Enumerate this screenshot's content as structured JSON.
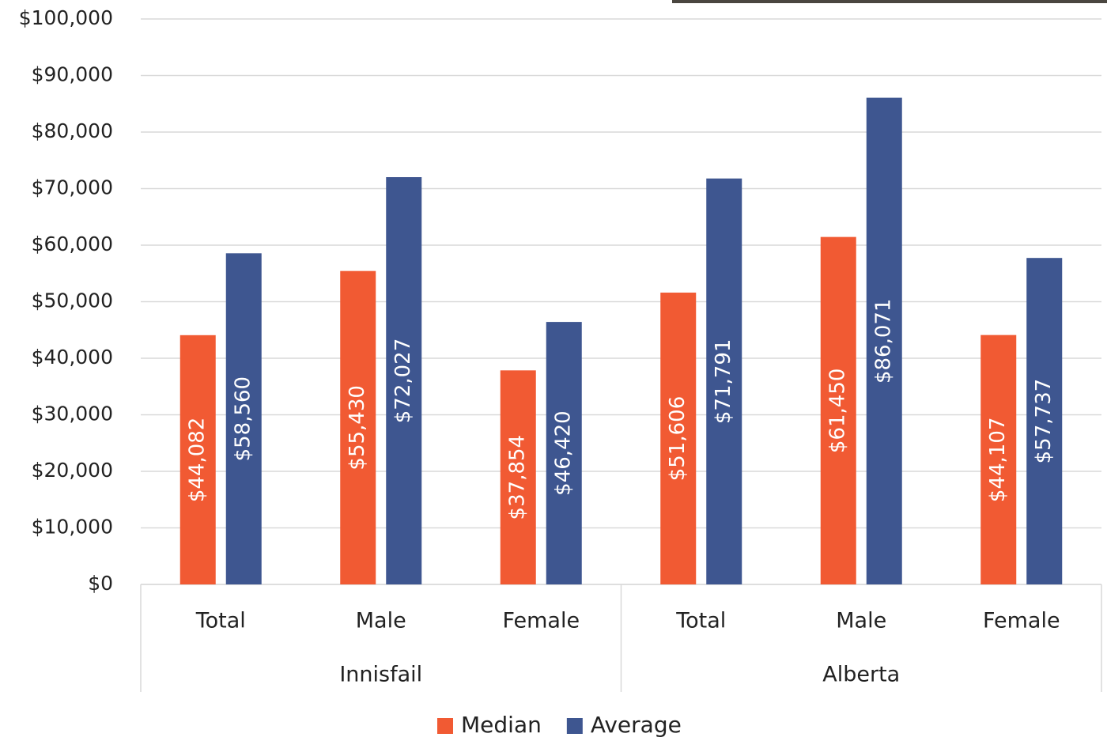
{
  "chart_data": {
    "type": "bar",
    "categories": [
      "Total",
      "Male",
      "Female",
      "Total",
      "Male",
      "Female"
    ],
    "groups": [
      "Innisfail",
      "Alberta"
    ],
    "series": [
      {
        "name": "Median",
        "color": "#f15a33",
        "values": [
          44082,
          55430,
          37854,
          51606,
          61450,
          44107
        ],
        "value_labels": [
          "$44,082",
          "$55,430",
          "$37,854",
          "$51,606",
          "$61,450",
          "$44,107"
        ]
      },
      {
        "name": "Average",
        "color": "#3e5690",
        "values": [
          58560,
          72027,
          46420,
          71791,
          86071,
          57737
        ],
        "value_labels": [
          "$58,560",
          "$72,027",
          "$46,420",
          "$71,791",
          "$86,071",
          "$57,737"
        ]
      }
    ],
    "ylim": [
      0,
      100000
    ],
    "yticks": [
      {
        "value": 0,
        "label": "$0"
      },
      {
        "value": 10000,
        "label": "$10,000"
      },
      {
        "value": 20000,
        "label": "$20,000"
      },
      {
        "value": 30000,
        "label": "$30,000"
      },
      {
        "value": 40000,
        "label": "$40,000"
      },
      {
        "value": 50000,
        "label": "$50,000"
      },
      {
        "value": 60000,
        "label": "$60,000"
      },
      {
        "value": 70000,
        "label": "$70,000"
      },
      {
        "value": 80000,
        "label": "$80,000"
      },
      {
        "value": 90000,
        "label": "$90,000"
      },
      {
        "value": 100000,
        "label": "$100,000"
      }
    ],
    "grid": true,
    "legend": "bottom"
  }
}
